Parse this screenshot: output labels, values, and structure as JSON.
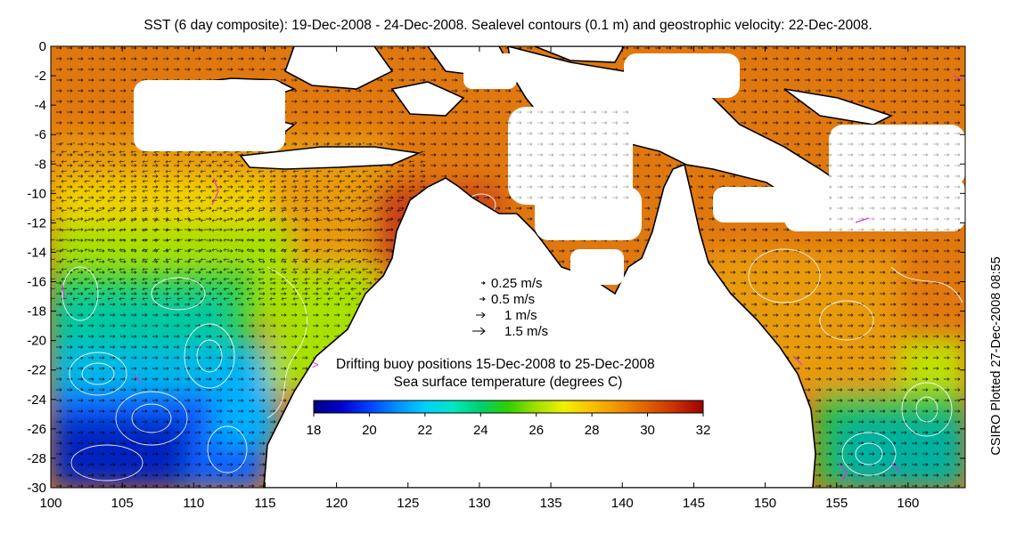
{
  "title": "SST (6 day composite): 19-Dec-2008 - 24-Dec-2008. Sealevel contours (0.1 m) and geostrophic velocity: 22-Dec-2008.",
  "credit": "CSIRO Plotted 27-Dec-2008 08:55",
  "axes": {
    "lon_min": 100,
    "lon_max": 164,
    "lat_min": -30,
    "lat_max": 0,
    "x_ticks": [
      100,
      105,
      110,
      115,
      120,
      125,
      130,
      135,
      140,
      145,
      150,
      155,
      160
    ],
    "y_ticks": [
      0,
      -2,
      -4,
      -6,
      -8,
      -10,
      -12,
      -14,
      -16,
      -18,
      -20,
      -22,
      -24,
      -26,
      -28,
      -30
    ]
  },
  "velocity_legend": [
    {
      "label": "0.25 m/s",
      "speed": 0.25
    },
    {
      "label": "0.5 m/s",
      "speed": 0.5
    },
    {
      "label": "1 m/s",
      "speed": 1
    },
    {
      "label": "1.5 m/s",
      "speed": 1.5
    }
  ],
  "buoy_legend": {
    "symbol": ">",
    "label": "Drifting buoy positions 15-Dec-2008 to 25-Dec-2008",
    "color": "#e030e0"
  },
  "colorbar": {
    "title": "Sea surface temperature (degrees C)",
    "min": 18,
    "max": 32,
    "ticks": [
      "18",
      "20",
      "22",
      "24",
      "26",
      "28",
      "30",
      "32"
    ],
    "colors": [
      "#00007f",
      "#0000d0",
      "#0040ff",
      "#0090ff",
      "#00d0ff",
      "#00e8c0",
      "#00d070",
      "#30d000",
      "#a0e000",
      "#f0f000",
      "#f8c000",
      "#f09000",
      "#e06000",
      "#c83000",
      "#a00000"
    ]
  },
  "colors": {
    "land": "#ffffff",
    "coast": "#000000",
    "contour": "#ffffff",
    "cloud": "#ffffff"
  }
}
